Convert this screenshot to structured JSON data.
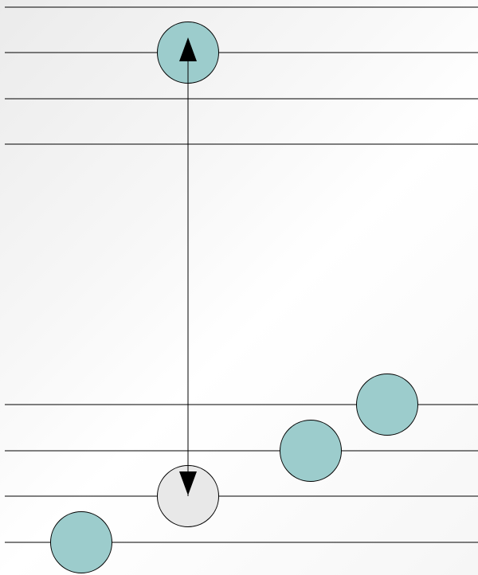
{
  "diagram": {
    "kind": "energy-level",
    "colors": {
      "filled": "#9ccccc",
      "empty": "#e8e8e8",
      "line": "#000000",
      "arrow": "#000000"
    },
    "levels": [
      {
        "id": "level-1",
        "band": "lower"
      },
      {
        "id": "level-2",
        "band": "lower"
      },
      {
        "id": "level-3",
        "band": "lower"
      },
      {
        "id": "level-4",
        "band": "lower"
      },
      {
        "id": "level-5",
        "band": "upper"
      },
      {
        "id": "level-6",
        "band": "upper"
      },
      {
        "id": "level-7",
        "band": "upper"
      },
      {
        "id": "level-8",
        "band": "upper"
      }
    ],
    "particles": [
      {
        "id": "particle-1",
        "level": 1,
        "state": "filled"
      },
      {
        "id": "particle-2",
        "level": 2,
        "state": "empty"
      },
      {
        "id": "particle-3",
        "level": 3,
        "state": "filled"
      },
      {
        "id": "particle-4",
        "level": 4,
        "state": "filled"
      },
      {
        "id": "particle-5",
        "level": 7,
        "state": "filled"
      }
    ],
    "transition": {
      "from_level": 2,
      "to_level": 7,
      "double_headed": true
    }
  }
}
